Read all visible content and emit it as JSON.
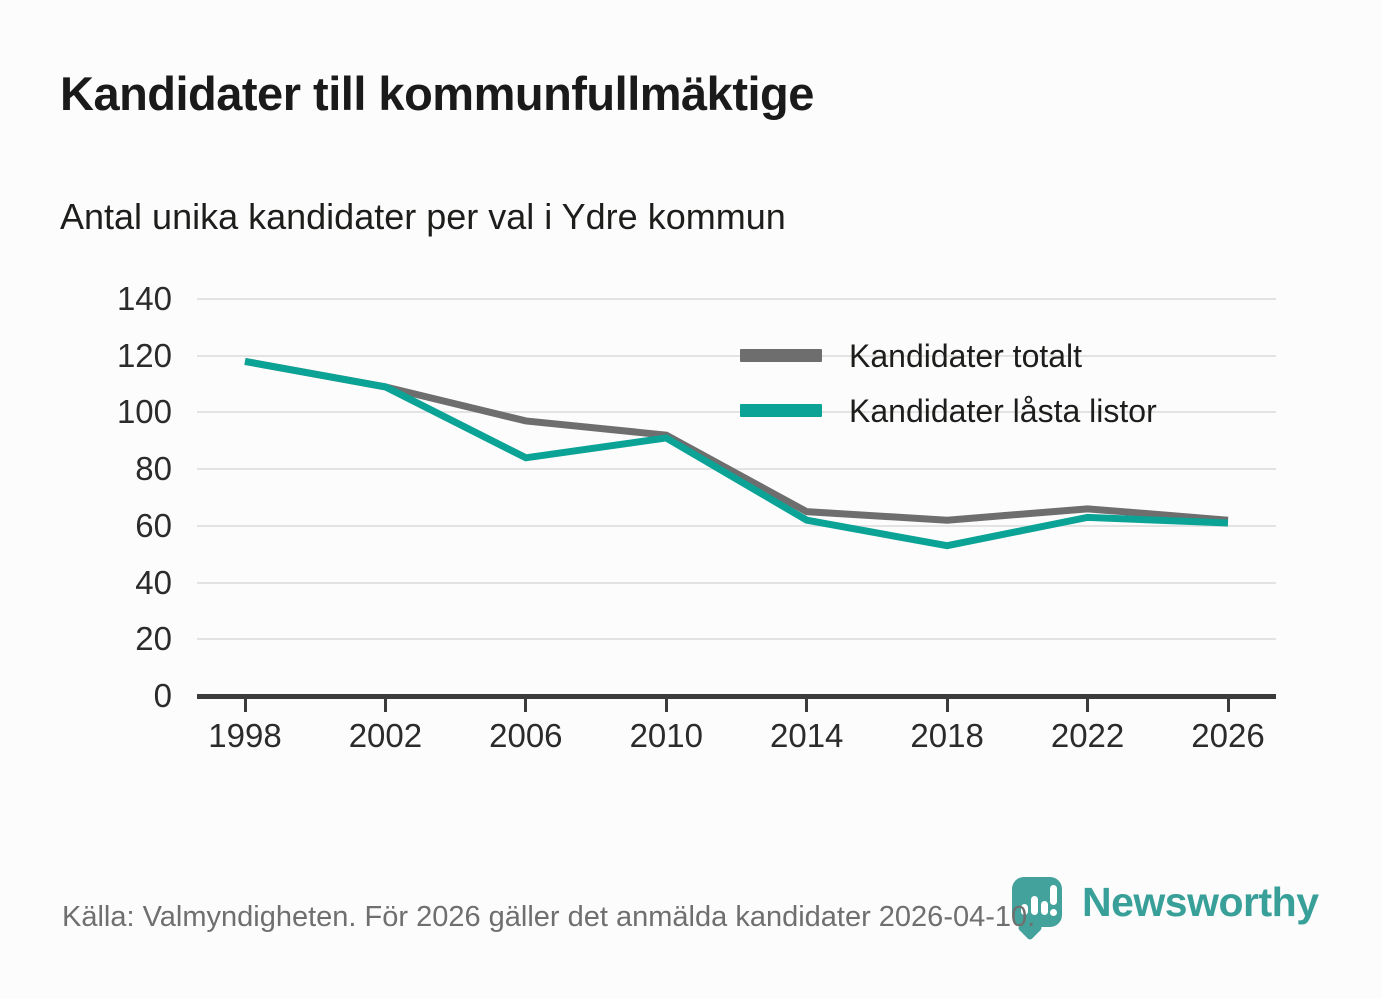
{
  "header": {
    "title": "Kandidater till kommunfullmäktige",
    "subtitle": "Antal unika kandidater per val i Ydre kommun"
  },
  "footer": {
    "source": "Källa: Valmyndigheten. För 2026 gäller det anmälda kandidater 2026-04-10.",
    "brand": "Newsworthy"
  },
  "colors": {
    "accent_teal": "#0aa396",
    "series_gray": "#6e6e6e",
    "logo_teal": "#44a29c",
    "grid": "#e3e3e3",
    "axis": "#3b3b3b"
  },
  "chart_data": {
    "type": "line",
    "title": "Kandidater till kommunfullmäktige",
    "subtitle": "Antal unika kandidater per val i Ydre kommun",
    "xlabel": "",
    "ylabel": "",
    "categories": [
      "1998",
      "2002",
      "2006",
      "2010",
      "2014",
      "2018",
      "2022",
      "2026"
    ],
    "series": [
      {
        "name": "Kandidater totalt",
        "color": "#6e6e6e",
        "values": [
          118,
          109,
          97,
          92,
          65,
          62,
          66,
          62
        ]
      },
      {
        "name": "Kandidater låsta listor",
        "color": "#0aa396",
        "values": [
          118,
          109,
          84,
          91,
          62,
          53,
          63,
          61
        ]
      }
    ],
    "ylim": [
      0,
      140
    ],
    "y_ticks": [
      0,
      20,
      40,
      60,
      80,
      100,
      120,
      140
    ],
    "grid": "horizontal",
    "legend_position": "top-right-inside"
  }
}
